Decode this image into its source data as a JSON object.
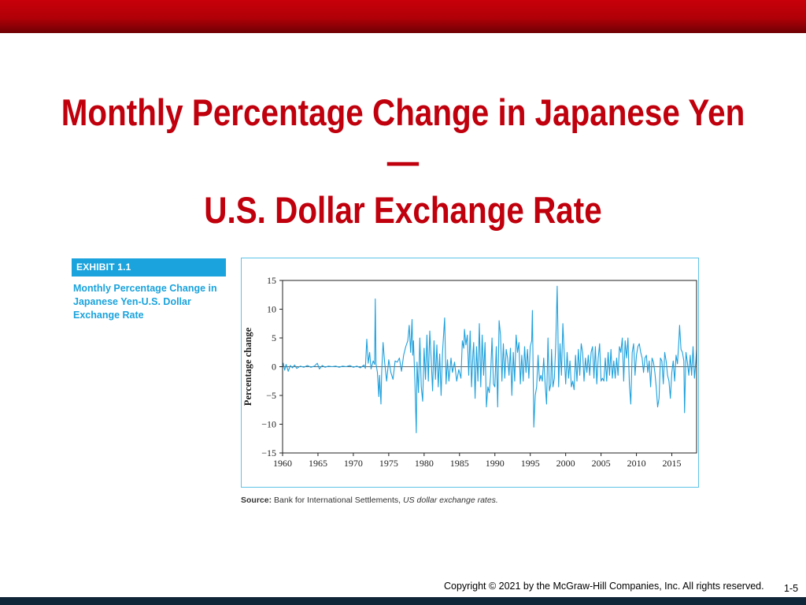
{
  "slide": {
    "title_line1": "Monthly Percentage Change in Japanese Yen—",
    "title_line2": "U.S. Dollar Exchange Rate",
    "exhibit_label": "EXHIBIT 1.1",
    "exhibit_caption": "Monthly Percentage Change in Japanese Yen-U.S. Dollar Exchange Rate",
    "source_label": "Source:",
    "source_text": "Bank for International Settlements,",
    "source_italic": "US dollar exchange rates.",
    "copyright": "Copyright © 2021 by the McGraw-Hill Companies, Inc. All rights reserved.",
    "page_number": "1-5"
  },
  "colors": {
    "top_bar": "#b00008",
    "title": "#c0000c",
    "accent": "#1aa3dc",
    "series": "#1ea0dc",
    "bottom_bar": "#0f2538"
  },
  "chart_data": {
    "type": "line",
    "title": "",
    "xlabel": "",
    "ylabel": "Percentage change",
    "xlim": [
      1960,
      2018.5
    ],
    "ylim": [
      -15,
      15
    ],
    "xticks": [
      1960,
      1965,
      1970,
      1975,
      1980,
      1985,
      1990,
      1995,
      2000,
      2005,
      2010,
      2015
    ],
    "yticks": [
      15,
      10,
      5,
      0,
      -5,
      -10,
      -15
    ],
    "ytick_labels": [
      "15",
      "10",
      "5",
      "0",
      "−5",
      "−10",
      "−15"
    ],
    "zero_line": true,
    "grid": false,
    "series": [
      {
        "values": [
          [
            1960.0,
            0.0
          ],
          [
            1960.1,
            0.6
          ],
          [
            1960.3,
            -0.6
          ],
          [
            1960.5,
            0.4
          ],
          [
            1960.8,
            -0.8
          ],
          [
            1961.1,
            0.2
          ],
          [
            1961.4,
            -0.2
          ],
          [
            1961.7,
            0.3
          ],
          [
            1962.0,
            -0.3
          ],
          [
            1962.5,
            0.1
          ],
          [
            1963.0,
            -0.1
          ],
          [
            1963.5,
            0.2
          ],
          [
            1964.0,
            -0.1
          ],
          [
            1964.5,
            0.1
          ],
          [
            1964.9,
            0.6
          ],
          [
            1965.2,
            -0.4
          ],
          [
            1965.6,
            0.2
          ],
          [
            1966.0,
            -0.1
          ],
          [
            1966.5,
            0.1
          ],
          [
            1967.0,
            0.0
          ],
          [
            1967.5,
            0.1
          ],
          [
            1968.0,
            -0.1
          ],
          [
            1968.5,
            0.1
          ],
          [
            1969.0,
            0.0
          ],
          [
            1969.5,
            0.2
          ],
          [
            1970.0,
            -0.1
          ],
          [
            1970.5,
            0.1
          ],
          [
            1971.0,
            -0.2
          ],
          [
            1971.5,
            0.3
          ],
          [
            1971.7,
            -0.3
          ],
          [
            1971.9,
            4.8
          ],
          [
            1972.1,
            0.6
          ],
          [
            1972.3,
            2.5
          ],
          [
            1972.5,
            -0.4
          ],
          [
            1972.8,
            1.0
          ],
          [
            1973.0,
            0.4
          ],
          [
            1973.1,
            11.8
          ],
          [
            1973.2,
            0.5
          ],
          [
            1973.4,
            -1.0
          ],
          [
            1973.6,
            -5.2
          ],
          [
            1973.7,
            -1.5
          ],
          [
            1973.9,
            -6.5
          ],
          [
            1974.0,
            -1.0
          ],
          [
            1974.2,
            4.2
          ],
          [
            1974.4,
            1.0
          ],
          [
            1974.7,
            -2.5
          ],
          [
            1975.0,
            1.2
          ],
          [
            1975.3,
            -1.0
          ],
          [
            1975.6,
            -2.2
          ],
          [
            1975.9,
            1.0
          ],
          [
            1976.2,
            0.8
          ],
          [
            1976.5,
            1.5
          ],
          [
            1976.8,
            -0.8
          ],
          [
            1977.1,
            2.0
          ],
          [
            1977.4,
            3.5
          ],
          [
            1977.7,
            4.5
          ],
          [
            1977.9,
            7.2
          ],
          [
            1978.1,
            2.5
          ],
          [
            1978.3,
            8.2
          ],
          [
            1978.4,
            2.0
          ],
          [
            1978.5,
            4.5
          ],
          [
            1978.7,
            -2.5
          ],
          [
            1978.9,
            -11.5
          ],
          [
            1979.0,
            0.8
          ],
          [
            1979.2,
            -4.5
          ],
          [
            1979.4,
            5.0
          ],
          [
            1979.6,
            -3.5
          ],
          [
            1979.8,
            -6.0
          ],
          [
            1980.0,
            3.2
          ],
          [
            1980.2,
            -2.2
          ],
          [
            1980.4,
            5.5
          ],
          [
            1980.6,
            -2.5
          ],
          [
            1980.8,
            6.2
          ],
          [
            1981.0,
            1.2
          ],
          [
            1981.2,
            -4.2
          ],
          [
            1981.4,
            4.5
          ],
          [
            1981.6,
            -2.2
          ],
          [
            1981.8,
            3.8
          ],
          [
            1982.0,
            -3.5
          ],
          [
            1982.2,
            2.2
          ],
          [
            1982.4,
            -5.0
          ],
          [
            1982.6,
            2.5
          ],
          [
            1982.9,
            8.5
          ],
          [
            1983.1,
            -3.0
          ],
          [
            1983.3,
            1.2
          ],
          [
            1983.5,
            -2.5
          ],
          [
            1983.8,
            1.5
          ],
          [
            1984.0,
            -1.0
          ],
          [
            1984.3,
            0.8
          ],
          [
            1984.6,
            -2.5
          ],
          [
            1984.9,
            -0.5
          ],
          [
            1985.2,
            -2.0
          ],
          [
            1985.4,
            4.5
          ],
          [
            1985.6,
            3.2
          ],
          [
            1985.7,
            6.5
          ],
          [
            1985.9,
            3.8
          ],
          [
            1986.1,
            5.5
          ],
          [
            1986.3,
            -1.5
          ],
          [
            1986.5,
            6.2
          ],
          [
            1986.7,
            -3.5
          ],
          [
            1986.9,
            2.5
          ],
          [
            1987.0,
            4.2
          ],
          [
            1987.2,
            -5.5
          ],
          [
            1987.4,
            3.5
          ],
          [
            1987.6,
            -2.5
          ],
          [
            1987.8,
            7.5
          ],
          [
            1988.0,
            -3.5
          ],
          [
            1988.2,
            5.5
          ],
          [
            1988.4,
            -1.5
          ],
          [
            1988.6,
            4.2
          ],
          [
            1988.8,
            -7.0
          ],
          [
            1989.0,
            -3.5
          ],
          [
            1989.2,
            -4.5
          ],
          [
            1989.4,
            -1.5
          ],
          [
            1989.6,
            5.0
          ],
          [
            1989.8,
            -3.0
          ],
          [
            1990.0,
            -3.5
          ],
          [
            1990.2,
            3.5
          ],
          [
            1990.4,
            -7.0
          ],
          [
            1990.6,
            8.0
          ],
          [
            1990.8,
            5.5
          ],
          [
            1991.0,
            -2.5
          ],
          [
            1991.2,
            4.0
          ],
          [
            1991.4,
            -2.0
          ],
          [
            1991.6,
            3.0
          ],
          [
            1991.8,
            1.5
          ],
          [
            1992.0,
            -1.5
          ],
          [
            1992.2,
            3.2
          ],
          [
            1992.4,
            -5.0
          ],
          [
            1992.6,
            2.5
          ],
          [
            1992.8,
            -2.5
          ],
          [
            1993.0,
            5.5
          ],
          [
            1993.2,
            2.5
          ],
          [
            1993.4,
            4.2
          ],
          [
            1993.6,
            -3.0
          ],
          [
            1993.8,
            2.0
          ],
          [
            1994.0,
            -2.5
          ],
          [
            1994.2,
            3.5
          ],
          [
            1994.4,
            -1.0
          ],
          [
            1994.6,
            3.0
          ],
          [
            1994.8,
            -2.0
          ],
          [
            1995.0,
            3.5
          ],
          [
            1995.2,
            4.5
          ],
          [
            1995.3,
            9.8
          ],
          [
            1995.5,
            -10.5
          ],
          [
            1995.7,
            -5.0
          ],
          [
            1995.9,
            -3.5
          ],
          [
            1996.1,
            2.0
          ],
          [
            1996.3,
            -2.5
          ],
          [
            1996.5,
            -1.5
          ],
          [
            1996.7,
            -2.5
          ],
          [
            1996.9,
            1.5
          ],
          [
            1997.1,
            -3.0
          ],
          [
            1997.3,
            -6.5
          ],
          [
            1997.5,
            5.0
          ],
          [
            1997.7,
            -4.2
          ],
          [
            1997.9,
            -3.0
          ],
          [
            1998.0,
            3.0
          ],
          [
            1998.2,
            -3.5
          ],
          [
            1998.4,
            -2.0
          ],
          [
            1998.6,
            4.0
          ],
          [
            1998.8,
            14.0
          ],
          [
            1998.9,
            6.5
          ],
          [
            1999.0,
            -3.5
          ],
          [
            1999.2,
            4.0
          ],
          [
            1999.4,
            -1.5
          ],
          [
            1999.6,
            7.5
          ],
          [
            1999.8,
            2.0
          ],
          [
            2000.0,
            -3.0
          ],
          [
            2000.2,
            2.5
          ],
          [
            2000.4,
            -2.0
          ],
          [
            2000.6,
            1.0
          ],
          [
            2000.8,
            -3.5
          ],
          [
            2001.0,
            -2.5
          ],
          [
            2001.2,
            -4.0
          ],
          [
            2001.4,
            2.0
          ],
          [
            2001.6,
            -2.5
          ],
          [
            2001.8,
            3.0
          ],
          [
            2002.0,
            -1.5
          ],
          [
            2002.2,
            4.0
          ],
          [
            2002.4,
            2.5
          ],
          [
            2002.6,
            -2.5
          ],
          [
            2002.8,
            1.5
          ],
          [
            2003.0,
            -1.0
          ],
          [
            2003.2,
            2.0
          ],
          [
            2003.4,
            -1.5
          ],
          [
            2003.6,
            2.5
          ],
          [
            2003.8,
            3.5
          ],
          [
            2004.0,
            -2.0
          ],
          [
            2004.2,
            3.5
          ],
          [
            2004.4,
            -3.0
          ],
          [
            2004.6,
            1.5
          ],
          [
            2004.8,
            4.0
          ],
          [
            2005.0,
            -2.5
          ],
          [
            2005.2,
            -2.0
          ],
          [
            2005.4,
            -2.5
          ],
          [
            2005.6,
            1.5
          ],
          [
            2005.8,
            -2.5
          ],
          [
            2006.0,
            2.5
          ],
          [
            2006.2,
            -1.5
          ],
          [
            2006.4,
            3.0
          ],
          [
            2006.6,
            -2.0
          ],
          [
            2006.8,
            1.0
          ],
          [
            2007.0,
            -2.0
          ],
          [
            2007.2,
            1.5
          ],
          [
            2007.4,
            -1.5
          ],
          [
            2007.6,
            3.5
          ],
          [
            2007.8,
            2.5
          ],
          [
            2008.0,
            5.0
          ],
          [
            2008.2,
            -2.5
          ],
          [
            2008.4,
            4.5
          ],
          [
            2008.6,
            1.5
          ],
          [
            2008.8,
            5.0
          ],
          [
            2009.0,
            -3.0
          ],
          [
            2009.2,
            -6.5
          ],
          [
            2009.4,
            2.5
          ],
          [
            2009.6,
            4.0
          ],
          [
            2009.8,
            -1.5
          ],
          [
            2010.0,
            2.0
          ],
          [
            2010.2,
            3.5
          ],
          [
            2010.4,
            4.0
          ],
          [
            2010.6,
            2.5
          ],
          [
            2010.8,
            1.5
          ],
          [
            2011.0,
            -1.0
          ],
          [
            2011.2,
            1.5
          ],
          [
            2011.4,
            2.0
          ],
          [
            2011.6,
            -1.0
          ],
          [
            2011.8,
            1.0
          ],
          [
            2012.0,
            -3.5
          ],
          [
            2012.2,
            1.5
          ],
          [
            2012.4,
            0.8
          ],
          [
            2012.6,
            -1.0
          ],
          [
            2012.8,
            -3.5
          ],
          [
            2013.0,
            -7.0
          ],
          [
            2013.2,
            -5.5
          ],
          [
            2013.4,
            1.5
          ],
          [
            2013.6,
            1.0
          ],
          [
            2013.8,
            -3.0
          ],
          [
            2014.0,
            2.5
          ],
          [
            2014.2,
            1.0
          ],
          [
            2014.4,
            -1.5
          ],
          [
            2014.6,
            -2.5
          ],
          [
            2014.8,
            -5.5
          ],
          [
            2015.0,
            -1.0
          ],
          [
            2015.2,
            1.0
          ],
          [
            2015.4,
            -2.5
          ],
          [
            2015.6,
            2.0
          ],
          [
            2015.8,
            0.5
          ],
          [
            2016.0,
            4.5
          ],
          [
            2016.1,
            7.2
          ],
          [
            2016.3,
            3.0
          ],
          [
            2016.5,
            2.5
          ],
          [
            2016.7,
            1.0
          ],
          [
            2016.8,
            -8.0
          ],
          [
            2017.0,
            2.5
          ],
          [
            2017.2,
            0.8
          ],
          [
            2017.4,
            -1.5
          ],
          [
            2017.6,
            2.0
          ],
          [
            2017.8,
            -1.5
          ],
          [
            2018.0,
            3.5
          ],
          [
            2018.2,
            -2.0
          ],
          [
            2018.4,
            1.0
          ],
          [
            2018.5,
            3.0
          ]
        ]
      }
    ]
  }
}
